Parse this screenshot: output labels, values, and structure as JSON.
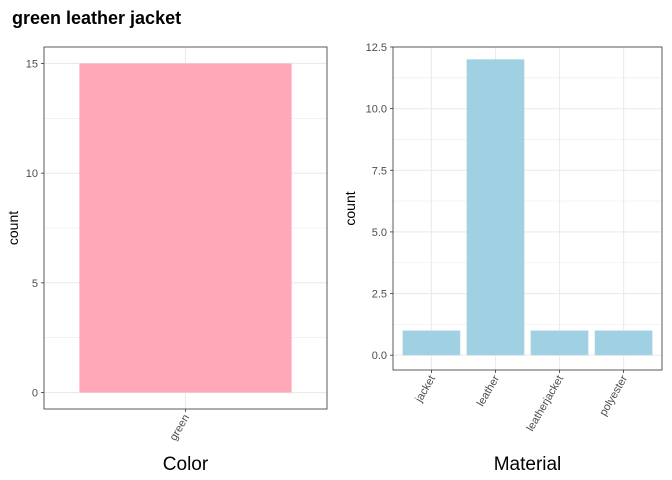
{
  "title": "green leather jacket",
  "colors": {
    "color_bar": "#FFA8B7",
    "material_bar": "#A0D1E3",
    "grid": "#EBEBEB",
    "panel_border": "#333333"
  },
  "chart_data": [
    {
      "type": "bar",
      "title": "",
      "xlabel": "Color",
      "ylabel": "count",
      "categories": [
        "green"
      ],
      "values": [
        15
      ],
      "ylim": [
        -0.75,
        15.75
      ],
      "yticks": [
        0,
        5,
        10,
        15
      ],
      "ytick_labels": [
        "0",
        "5",
        "10",
        "15"
      ],
      "grid": true,
      "legend": "none"
    },
    {
      "type": "bar",
      "title": "",
      "xlabel": "Material",
      "ylabel": "count",
      "categories": [
        "jacket",
        "leather",
        "leatherjacket",
        "polyester"
      ],
      "values": [
        1,
        12,
        1,
        1
      ],
      "ylim": [
        -0.6,
        12.5
      ],
      "yticks": [
        0,
        2.5,
        5,
        7.5,
        10,
        12.5
      ],
      "ytick_labels": [
        "0.0",
        "2.5",
        "5.0",
        "7.5",
        "10.0",
        "12.5"
      ],
      "grid": true,
      "legend": "none"
    }
  ]
}
